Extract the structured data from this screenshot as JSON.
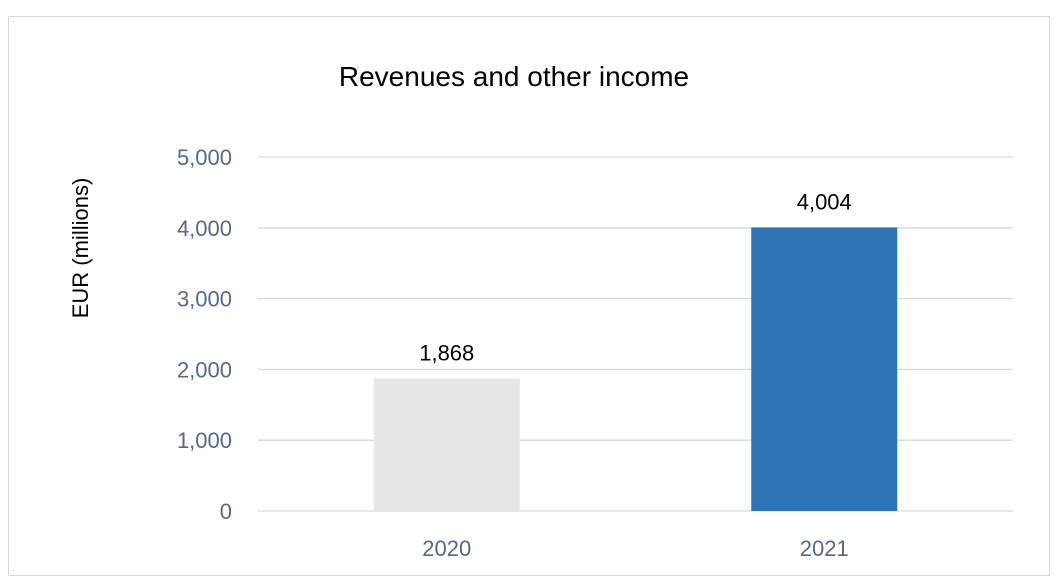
{
  "chart_data": {
    "type": "bar",
    "title": "Revenues and other income",
    "xlabel": "",
    "ylabel": "EUR (millions)",
    "categories": [
      "2020",
      "2021"
    ],
    "values": [
      1868,
      4004
    ],
    "value_labels": [
      "1,868",
      "4,004"
    ],
    "bar_colors": [
      "#e6e6e6",
      "#2e74b5"
    ],
    "ylim": [
      0,
      5000
    ],
    "yticks": [
      0,
      1000,
      2000,
      3000,
      4000,
      5000
    ],
    "ytick_labels": [
      "0",
      "1,000",
      "2,000",
      "3,000",
      "4,000",
      "5,000"
    ],
    "grid": true,
    "legend": "none"
  }
}
